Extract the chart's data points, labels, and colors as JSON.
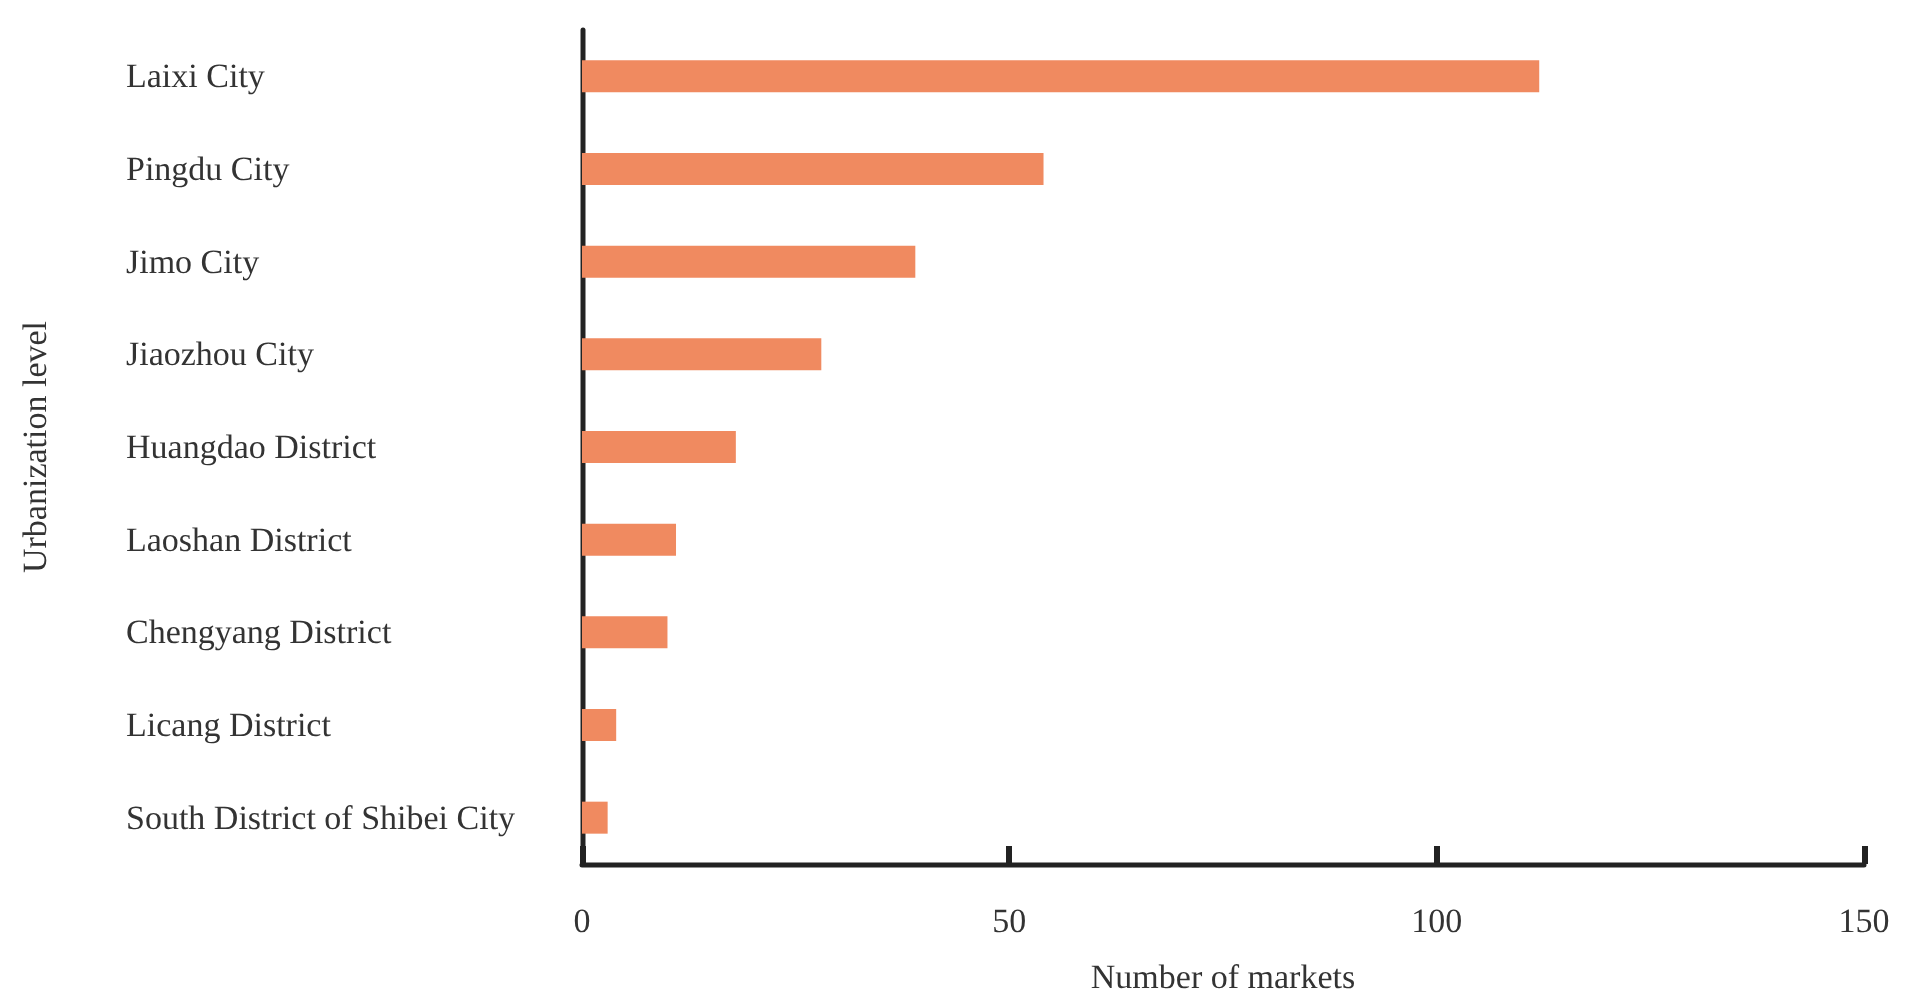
{
  "chart_data": {
    "type": "bar",
    "orientation": "horizontal",
    "categories": [
      "Laixi City",
      "Pingdu City",
      "Jimo City",
      "Jiaozhou City",
      "Huangdao District",
      "Laoshan District",
      "Chengyang District",
      "Licang District",
      "South District of Shibei City"
    ],
    "values": [
      112,
      54,
      39,
      28,
      18,
      11,
      10,
      4,
      3
    ],
    "color": "#f08a60",
    "xlabel": "Number of markets",
    "ylabel": "Urbanization level",
    "xlim": [
      0,
      150
    ],
    "xticks": [
      0,
      50,
      100,
      150
    ],
    "grid": false
  }
}
